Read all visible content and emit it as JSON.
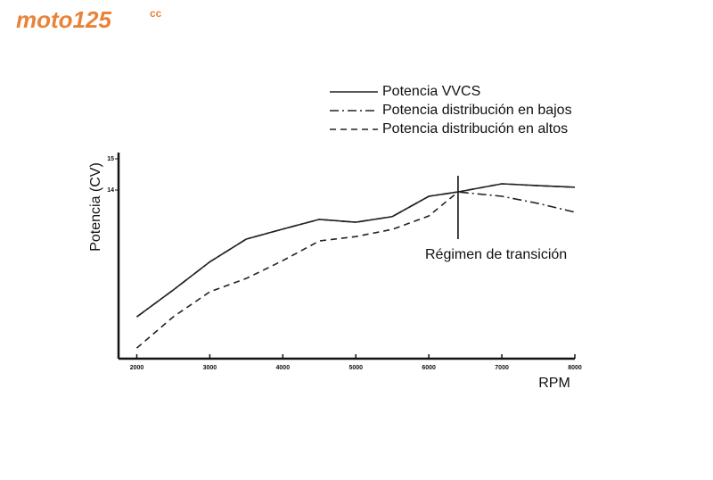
{
  "logo": {
    "name": "moto125",
    "suffix": "cc"
  },
  "chart_data": {
    "type": "line",
    "x_label": "RPM",
    "y_label": "Potencia (CV)",
    "x": [
      2000,
      2500,
      3000,
      3500,
      4000,
      4500,
      5000,
      5500,
      6000,
      6400,
      7000,
      7500,
      8000
    ],
    "series": [
      {
        "name": "Potencia VVCS",
        "color": "#222222",
        "dash": "solid",
        "values": [
          9.94,
          10.8,
          11.7,
          12.43,
          12.75,
          13.06,
          12.97,
          13.15,
          13.8,
          13.94,
          14.2,
          14.14,
          14.09
        ]
      },
      {
        "name": "Potencia distribución en bajos",
        "color": "#222222",
        "dash": "dashdot",
        "values": [
          9.94,
          10.8,
          11.7,
          12.43,
          12.75,
          13.06,
          12.97,
          13.15,
          13.8,
          13.94,
          13.8,
          13.57,
          13.29
        ]
      },
      {
        "name": "Potencia distribución en altos",
        "color": "#222222",
        "dash": "dashed",
        "values": [
          8.94,
          9.94,
          10.74,
          11.17,
          11.74,
          12.37,
          12.51,
          12.74,
          13.17,
          13.94,
          14.2,
          14.14,
          14.09
        ]
      }
    ],
    "xlim": [
      1750,
      8000
    ],
    "xticks": [
      2000,
      3000,
      4000,
      5000,
      6000,
      7000,
      8000
    ],
    "ylim": [
      8.6,
      15.2
    ],
    "yticks": [
      14,
      15
    ],
    "annotation": {
      "text": "Régimen de transición",
      "x": 6400
    }
  }
}
